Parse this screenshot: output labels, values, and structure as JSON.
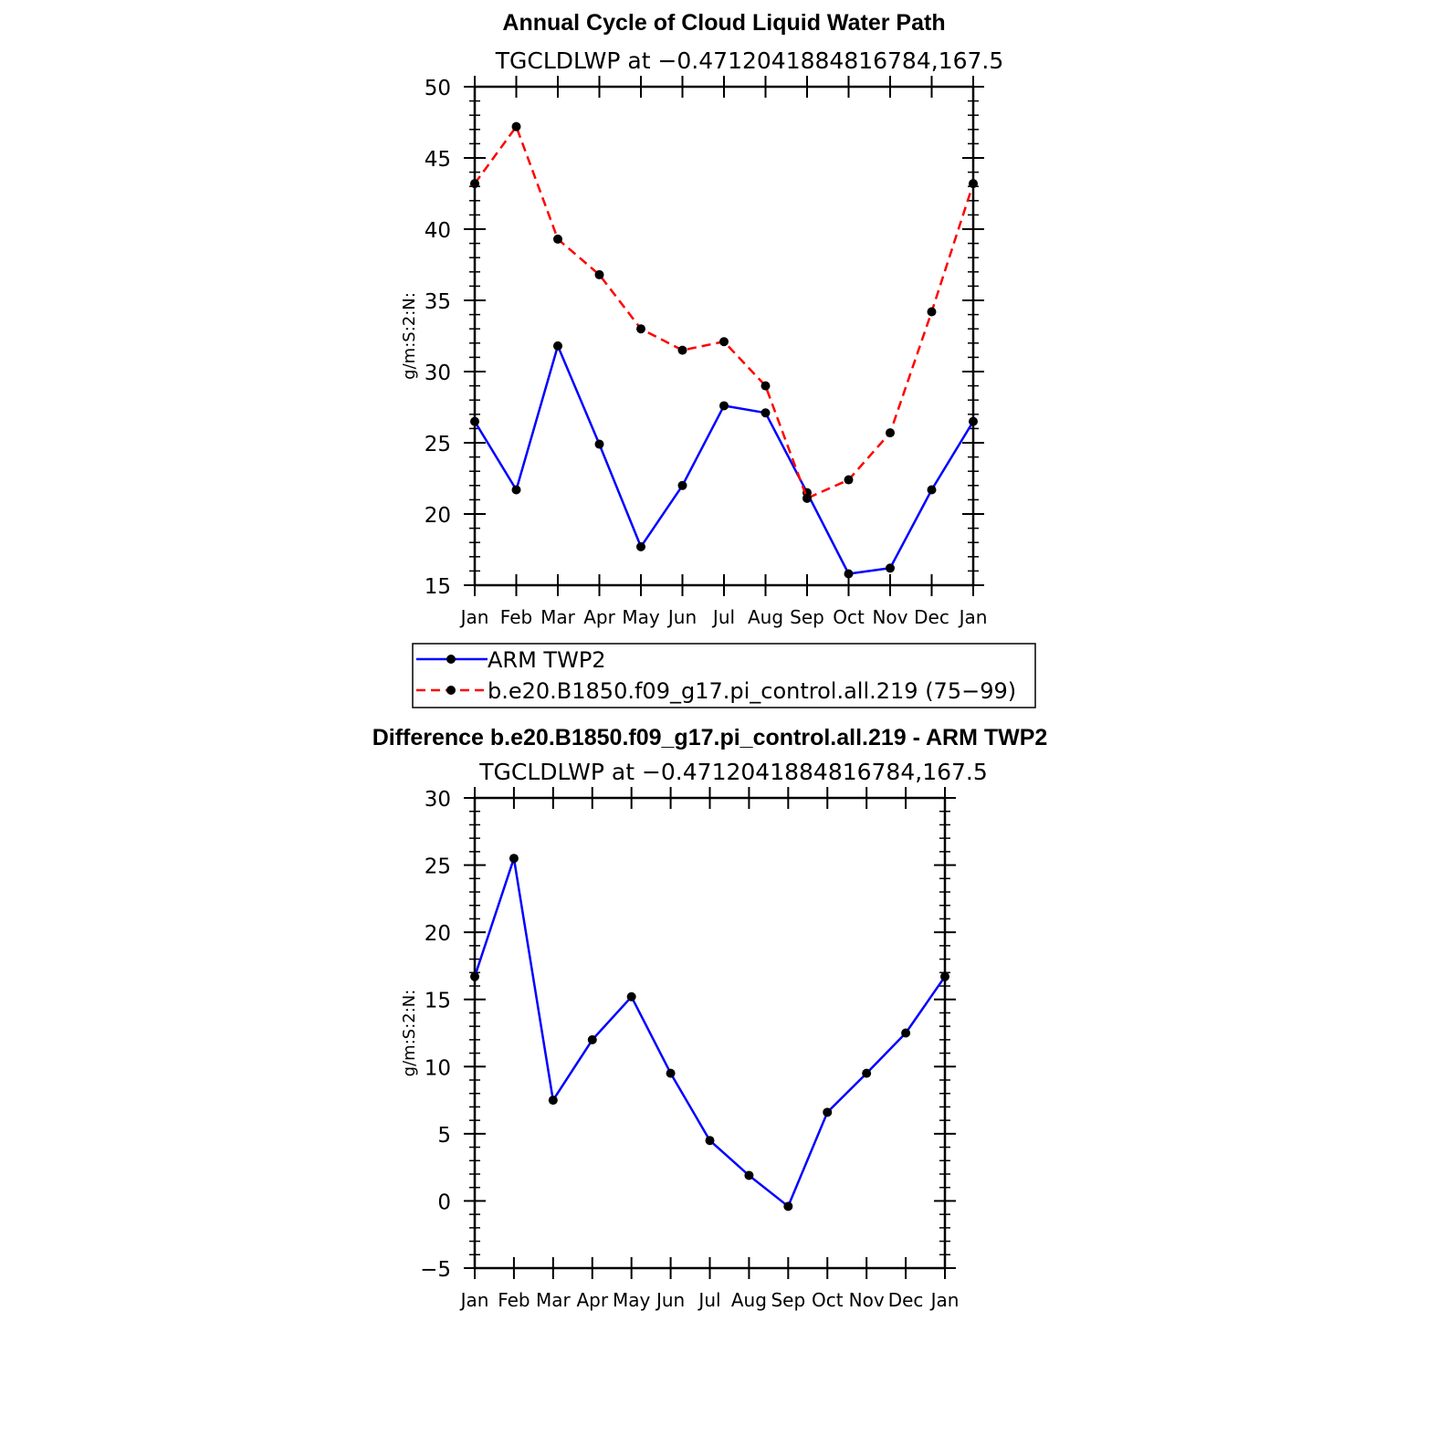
{
  "chart_data": [
    {
      "type": "line",
      "title": "Annual Cycle of Cloud Liquid Water Path",
      "subtitle": "TGCLDLWP at −0.4712041884816784,167.5",
      "ylabel": "g/m:S:2:N:",
      "xlabel": "",
      "categories": [
        "Jan",
        "Feb",
        "Mar",
        "Apr",
        "May",
        "Jun",
        "Jul",
        "Aug",
        "Sep",
        "Oct",
        "Nov",
        "Dec",
        "Jan"
      ],
      "ylim": [
        15,
        50
      ],
      "yticks": [
        "15",
        "20",
        "25",
        "30",
        "35",
        "40",
        "45",
        "50"
      ],
      "series": [
        {
          "name": "ARM TWP2",
          "color": "#0000ff",
          "dash": "solid",
          "values": [
            26.5,
            21.7,
            31.8,
            24.9,
            17.7,
            22.0,
            27.6,
            27.1,
            21.5,
            15.8,
            16.2,
            21.7,
            26.5
          ]
        },
        {
          "name": "b.e20.B1850.f09_g17.pi_control.all.219 (75−99)",
          "color": "#ff0000",
          "dash": "dashed",
          "values": [
            43.2,
            47.2,
            39.3,
            36.8,
            33.0,
            31.5,
            32.1,
            29.0,
            21.1,
            22.4,
            25.7,
            34.2,
            43.2
          ]
        }
      ],
      "legend": [
        "ARM TWP2",
        "b.e20.B1850.f09_g17.pi_control.all.219 (75−99)"
      ]
    },
    {
      "type": "line",
      "title": "Difference b.e20.B1850.f09_g17.pi_control.all.219 - ARM TWP2",
      "subtitle": "TGCLDLWP at −0.4712041884816784,167.5",
      "ylabel": "g/m:S:2:N:",
      "xlabel": "",
      "categories": [
        "Jan",
        "Feb",
        "Mar",
        "Apr",
        "May",
        "Jun",
        "Jul",
        "Aug",
        "Sep",
        "Oct",
        "Nov",
        "Dec",
        "Jan"
      ],
      "ylim": [
        -5,
        30
      ],
      "yticks": [
        "−5",
        "0",
        "5",
        "10",
        "15",
        "20",
        "25",
        "30"
      ],
      "series": [
        {
          "name": "Difference",
          "color": "#0000ff",
          "dash": "solid",
          "values": [
            16.7,
            25.5,
            7.5,
            12.0,
            15.2,
            9.5,
            4.5,
            1.9,
            -0.4,
            6.6,
            9.5,
            12.5,
            16.7
          ]
        }
      ]
    }
  ]
}
